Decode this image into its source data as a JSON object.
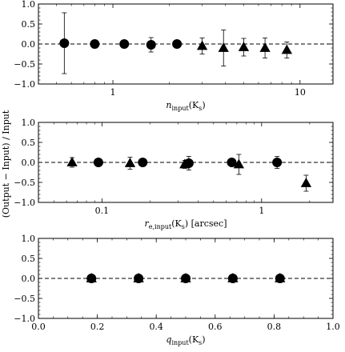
{
  "figure": {
    "ylabel": "(Output − Input) / Input"
  },
  "chart_data": [
    {
      "type": "scatter",
      "xlabel_main": "n",
      "xlabel_sub": "input",
      "xlabel_tail": "(K",
      "xlabel_tail_sub": "s",
      "xlabel_end": ")",
      "xscale": "log",
      "xlim": [
        0.4,
        15
      ],
      "ylim": [
        -1.0,
        1.0
      ],
      "x_ticks": [
        1,
        10
      ],
      "x_tick_labels": [
        "1",
        "10"
      ],
      "y_ticks": [
        -1.0,
        -0.5,
        0.0,
        0.5,
        1.0
      ],
      "y_tick_labels": [
        "−1.0",
        "−0.5",
        "0.0",
        "0.5",
        "1.0"
      ],
      "zero_line": true,
      "series": [
        {
          "marker": "circle",
          "points": [
            {
              "x": 0.55,
              "y": 0.02,
              "err": 0.76
            },
            {
              "x": 0.8,
              "y": 0.0,
              "err": 0.1
            },
            {
              "x": 1.15,
              "y": 0.0,
              "err": 0.05
            },
            {
              "x": 1.6,
              "y": -0.02,
              "err": 0.18
            },
            {
              "x": 2.2,
              "y": 0.0,
              "err": 0.07
            }
          ]
        },
        {
          "marker": "triangle",
          "points": [
            {
              "x": 3.0,
              "y": -0.05,
              "err": 0.2
            },
            {
              "x": 3.9,
              "y": -0.1,
              "err": 0.45
            },
            {
              "x": 5.0,
              "y": -0.08,
              "err": 0.22
            },
            {
              "x": 6.5,
              "y": -0.1,
              "err": 0.25
            },
            {
              "x": 8.5,
              "y": -0.15,
              "err": 0.2
            }
          ]
        }
      ]
    },
    {
      "type": "scatter",
      "xlabel_main": "r",
      "xlabel_sub": "e,input",
      "xlabel_tail": "(K",
      "xlabel_tail_sub": "s",
      "xlabel_end": ") [arcsec]",
      "xscale": "log",
      "xlim": [
        0.04,
        2.8
      ],
      "ylim": [
        -1.0,
        1.0
      ],
      "x_ticks": [
        0.1,
        1
      ],
      "x_tick_labels": [
        "0.1",
        "1"
      ],
      "y_ticks": [
        -1.0,
        -0.5,
        0.0,
        0.5,
        1.0
      ],
      "y_tick_labels": [
        "−1.0",
        "−0.5",
        "0.0",
        "0.5",
        "1.0"
      ],
      "zero_line": true,
      "series": [
        {
          "marker": "circle",
          "points": [
            {
              "x": 0.095,
              "y": 0.0,
              "err": 0.05
            },
            {
              "x": 0.18,
              "y": 0.0,
              "err": 0.07
            },
            {
              "x": 0.35,
              "y": -0.02,
              "err": 0.17
            },
            {
              "x": 0.65,
              "y": 0.0,
              "err": 0.08
            },
            {
              "x": 1.25,
              "y": 0.0,
              "err": 0.15
            }
          ]
        },
        {
          "marker": "triangle",
          "points": [
            {
              "x": 0.065,
              "y": 0.0,
              "err": 0.12
            },
            {
              "x": 0.15,
              "y": -0.02,
              "err": 0.15
            },
            {
              "x": 0.33,
              "y": -0.05,
              "err": 0.1
            },
            {
              "x": 0.72,
              "y": -0.05,
              "err": 0.25
            },
            {
              "x": 1.9,
              "y": -0.52,
              "err": 0.2
            }
          ]
        }
      ]
    },
    {
      "type": "scatter",
      "xlabel_main": "q",
      "xlabel_sub": "input",
      "xlabel_tail": "(K",
      "xlabel_tail_sub": "s",
      "xlabel_end": ")",
      "xscale": "linear",
      "xlim": [
        0.0,
        1.0
      ],
      "ylim": [
        -1.0,
        1.0
      ],
      "x_ticks": [
        0.0,
        0.2,
        0.4,
        0.6,
        0.8,
        1.0
      ],
      "x_tick_labels": [
        "0.0",
        "0.2",
        "0.4",
        "0.6",
        "0.8",
        "1.0"
      ],
      "y_ticks": [
        -1.0,
        -0.5,
        0.0,
        0.5,
        1.0
      ],
      "y_tick_labels": [
        "−1.0",
        "−0.5",
        "0.0",
        "0.5",
        "1.0"
      ],
      "zero_line": true,
      "series": [
        {
          "marker": "circle",
          "points": [
            {
              "x": 0.18,
              "y": 0.0,
              "err": 0.03
            },
            {
              "x": 0.34,
              "y": 0.0,
              "err": 0.03
            },
            {
              "x": 0.5,
              "y": 0.0,
              "err": 0.03
            },
            {
              "x": 0.66,
              "y": 0.0,
              "err": 0.03
            },
            {
              "x": 0.82,
              "y": 0.0,
              "err": 0.03
            }
          ]
        },
        {
          "marker": "triangle",
          "points": [
            {
              "x": 0.18,
              "y": 0.0,
              "err": 0.03
            },
            {
              "x": 0.34,
              "y": 0.0,
              "err": 0.03
            },
            {
              "x": 0.5,
              "y": 0.0,
              "err": 0.03
            },
            {
              "x": 0.66,
              "y": 0.0,
              "err": 0.03
            },
            {
              "x": 0.82,
              "y": 0.0,
              "err": 0.03
            }
          ]
        }
      ]
    }
  ]
}
